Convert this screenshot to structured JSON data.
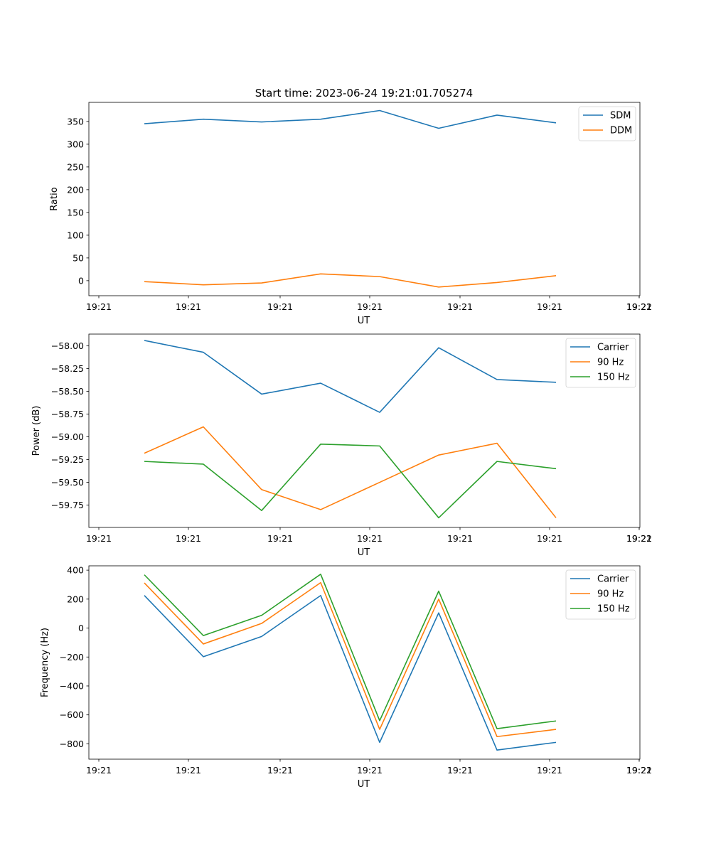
{
  "figure_title": "Start time: 2023-06-24 19:21:01.705274",
  "chart_data": [
    {
      "type": "line",
      "ylabel": "Ratio",
      "xlabel": "UT",
      "x": [
        1,
        2,
        3,
        4,
        5,
        6,
        7,
        8
      ],
      "x_tick_labels": [
        "19:21",
        "19:21",
        "19:21",
        "19:21",
        "19:21",
        "19:21",
        "19:21"
      ],
      "x_last_tick_label": "19:22",
      "ylim": [
        -33,
        392
      ],
      "yticks": [
        0,
        50,
        100,
        150,
        200,
        250,
        300,
        350
      ],
      "yticks_labels": [
        "0",
        "50",
        "100",
        "150",
        "200",
        "250",
        "300",
        "350"
      ],
      "legend": "top-right",
      "series": [
        {
          "name": "SDM",
          "color": "#1f77b4",
          "values": [
            345,
            355,
            349,
            355,
            374,
            335,
            364,
            347
          ]
        },
        {
          "name": "DDM",
          "color": "#ff7f0e",
          "values": [
            -2,
            -9,
            -5,
            15,
            9,
            -14,
            -4,
            11
          ]
        }
      ]
    },
    {
      "type": "line",
      "ylabel": "Power (dB)",
      "xlabel": "UT",
      "x": [
        1,
        2,
        3,
        4,
        5,
        6,
        7,
        8
      ],
      "x_tick_labels": [
        "19:21",
        "19:21",
        "19:21",
        "19:21",
        "19:21",
        "19:21",
        "19:21"
      ],
      "x_last_tick_label": "19:22",
      "ylim": [
        -59.996,
        -57.87
      ],
      "yticks": [
        -58.0,
        -58.25,
        -58.5,
        -58.75,
        -59.0,
        -59.25,
        -59.5,
        -59.75
      ],
      "yticks_labels": [
        "−58.00",
        "−58.25",
        "−58.50",
        "−58.75",
        "−59.00",
        "−59.25",
        "−59.50",
        "−59.75"
      ],
      "legend": "top-right",
      "series": [
        {
          "name": "Carrier",
          "color": "#1f77b4",
          "values": [
            -57.94,
            -58.07,
            -58.53,
            -58.41,
            -58.73,
            -58.02,
            -58.37,
            -58.4
          ]
        },
        {
          "name": "90 Hz",
          "color": "#ff7f0e",
          "values": [
            -59.18,
            -58.89,
            -59.58,
            -59.8,
            -59.5,
            -59.2,
            -59.07,
            -59.89
          ]
        },
        {
          "name": "150 Hz",
          "color": "#2ca02c",
          "values": [
            -59.27,
            -59.3,
            -59.81,
            -59.08,
            -59.1,
            -59.89,
            -59.27,
            -59.35
          ]
        }
      ]
    },
    {
      "type": "line",
      "ylabel": "Frequency (Hz)",
      "xlabel": "UT",
      "x": [
        1,
        2,
        3,
        4,
        5,
        6,
        7,
        8
      ],
      "x_tick_labels": [
        "19:21",
        "19:21",
        "19:21",
        "19:21",
        "19:21",
        "19:21",
        "19:21"
      ],
      "x_last_tick_label": "19:22",
      "ylim": [
        -906,
        430
      ],
      "yticks": [
        400,
        200,
        0,
        -200,
        -400,
        -600,
        -800
      ],
      "yticks_labels": [
        "400",
        "200",
        "0",
        "−200",
        "−400",
        "−600",
        "−800"
      ],
      "legend": "top-right",
      "series": [
        {
          "name": "Carrier",
          "color": "#1f77b4",
          "values": [
            225,
            -198,
            -58,
            225,
            -790,
            105,
            -843,
            -790
          ]
        },
        {
          "name": "90 Hz",
          "color": "#ff7f0e",
          "values": [
            312,
            -110,
            32,
            314,
            -700,
            200,
            -750,
            -700
          ]
        },
        {
          "name": "150 Hz",
          "color": "#2ca02c",
          "values": [
            368,
            -52,
            88,
            372,
            -640,
            255,
            -695,
            -642
          ]
        }
      ]
    }
  ]
}
